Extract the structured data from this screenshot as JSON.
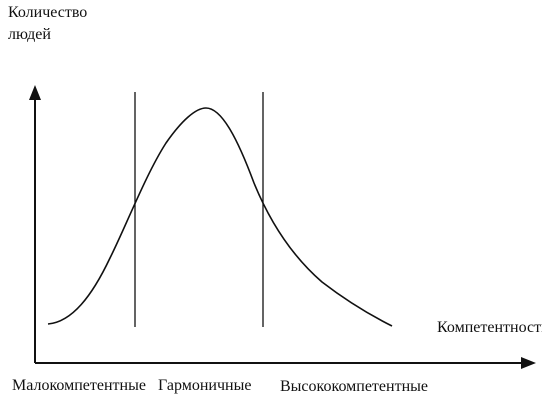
{
  "diagram": {
    "y_axis_label_line1": "Количество",
    "y_axis_label_line2": "людей",
    "x_axis_label": "Компетентность",
    "regions": {
      "low": "Малокомпетентные",
      "mid": "Гармоничные",
      "high": "Высококомпетентные"
    },
    "line_color": "#111111"
  }
}
